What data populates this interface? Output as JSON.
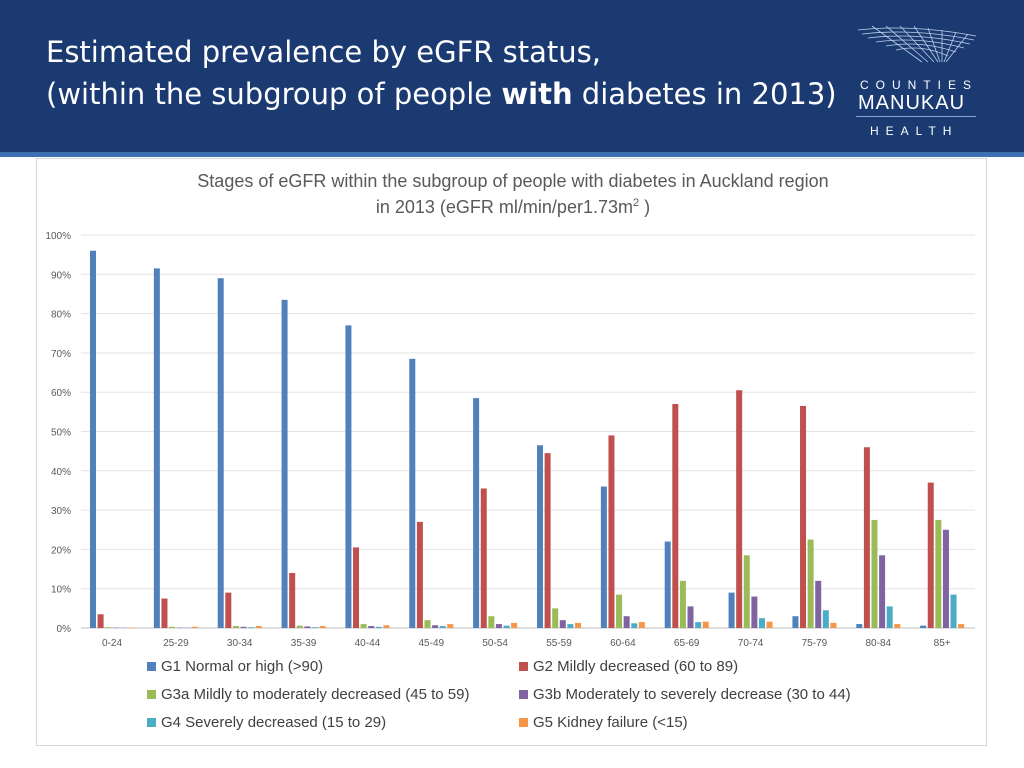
{
  "header": {
    "title_line1": "Estimated prevalence by eGFR status,",
    "title_line2_pre": "(within the subgroup of people ",
    "title_line2_bold": "with",
    "title_line2_post": " diabetes in 2013)"
  },
  "logo": {
    "line1": "COUNTIES",
    "line2": "MANUKAU",
    "line3": "HEALTH"
  },
  "colors": {
    "header_bg": "#1b3a72",
    "series": [
      "#4f81bd",
      "#c0504d",
      "#9bbb59",
      "#8064a2",
      "#4bacc6",
      "#f79646"
    ]
  },
  "chart_data": {
    "type": "bar",
    "title_line1": "Stages of eGFR within the subgroup of people with diabetes in Auckland region",
    "title_line2": "in 2013  (eGFR ml/min/per1.73m",
    "title_sup": "2",
    "title_close": " )",
    "ylim": [
      0,
      100
    ],
    "yticks": [
      "0%",
      "10%",
      "20%",
      "30%",
      "40%",
      "50%",
      "60%",
      "70%",
      "80%",
      "90%",
      "100%"
    ],
    "categories": [
      "0-24",
      "25-29",
      "30-34",
      "35-39",
      "40-44",
      "45-49",
      "50-54",
      "55-59",
      "60-64",
      "65-69",
      "70-74",
      "75-79",
      "80-84",
      "85+"
    ],
    "series": [
      {
        "name": "G1 Normal or high  (>90)",
        "values": [
          96,
          91.5,
          89,
          83.5,
          77,
          68.5,
          58.5,
          46.5,
          36,
          22,
          9,
          3,
          1,
          0.6
        ]
      },
      {
        "name": "G2 Mildly decreased (60 to 89)",
        "values": [
          3.5,
          7.5,
          9,
          14,
          20.5,
          27,
          35.5,
          44.5,
          49,
          57,
          60.5,
          56.5,
          46,
          37
        ]
      },
      {
        "name": "G3a Mildly to moderately decreased (45 to 59)",
        "values": [
          0.2,
          0.3,
          0.5,
          0.6,
          1,
          2,
          3,
          5,
          8.5,
          12,
          18.5,
          22.5,
          27.5,
          27.5
        ]
      },
      {
        "name": "G3b Moderately to severely decrease (30 to 44)",
        "values": [
          0.1,
          0.1,
          0.3,
          0.4,
          0.5,
          0.7,
          1,
          2,
          3,
          5.5,
          8,
          12,
          18.5,
          25
        ]
      },
      {
        "name": "G4 Severely decreased (15 to 29)",
        "values": [
          0.1,
          0.1,
          0.2,
          0.2,
          0.3,
          0.5,
          0.6,
          1,
          1.2,
          1.5,
          2.5,
          4.5,
          5.5,
          8.5
        ]
      },
      {
        "name": "G5 Kidney failure (<15)",
        "values": [
          0.1,
          0.3,
          0.5,
          0.5,
          0.7,
          1,
          1.3,
          1.3,
          1.5,
          1.6,
          1.6,
          1.3,
          1,
          1
        ]
      }
    ],
    "legend_position": "bottom",
    "grid": true
  }
}
